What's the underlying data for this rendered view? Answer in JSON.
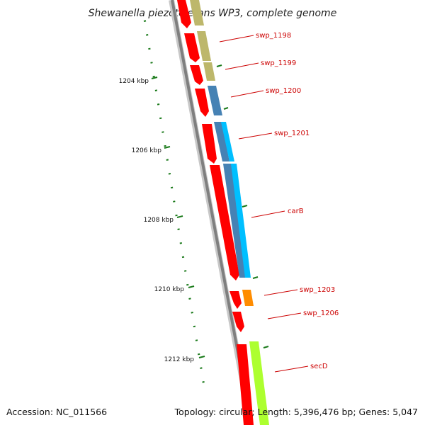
{
  "title": "Shewanella piezotolerans WP3, complete genome",
  "footer": {
    "accession": "Accession: NC_011566",
    "topology": "Topology: circular; Length: 5,396,476 bp; Genes: 5,047"
  },
  "colors": {
    "backbone": "#808080",
    "forward_cds": "#ff0000",
    "tick": "#1a7a1a",
    "label": "#cc0000",
    "cog_khaki": "#bdb76b",
    "cog_steel": "#4682b4",
    "cog_cyan": "#00bfff",
    "cog_orange": "#ff8c00",
    "cog_lime": "#adff2f"
  },
  "kbp_labels": [
    "1204 kbp",
    "1206 kbp",
    "1208 kbp",
    "1210 kbp",
    "1212 kbp"
  ],
  "gene_labels": [
    "swp_1198",
    "swp_1199",
    "swp_1200",
    "swp_1201",
    "carB",
    "swp_1203",
    "swp_1206",
    "secD"
  ]
}
